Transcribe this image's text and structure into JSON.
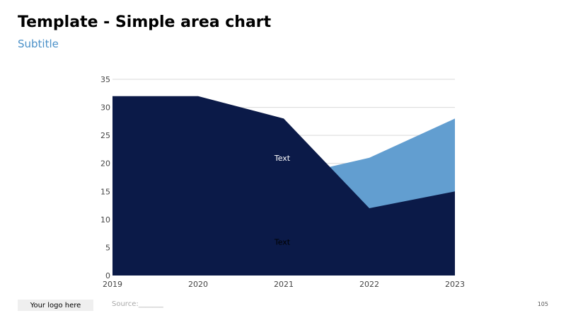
{
  "header": {
    "title": "Template - Simple area chart",
    "subtitle": "Subtitle"
  },
  "chart_data": {
    "type": "area",
    "title": "",
    "xlabel": "",
    "ylabel": "",
    "x": [
      "2019",
      "2020",
      "2021",
      "2022",
      "2023"
    ],
    "yticks": [
      0,
      5,
      10,
      15,
      20,
      25,
      30,
      35
    ],
    "ylim": [
      0,
      35
    ],
    "grid": true,
    "legend": "none",
    "series": [
      {
        "values": [
          32,
          32,
          28,
          12,
          15
        ],
        "color": "#0b1a48",
        "label": "Text",
        "label_color": "#000000"
      },
      {
        "values": [
          17.5,
          17.5,
          17.5,
          21,
          28
        ],
        "color": "#629ed0",
        "label": "Text",
        "label_color": "#ffffff"
      }
    ]
  },
  "footer": {
    "logo_text": "Your logo here",
    "source": "Source:_______",
    "page_number": "105"
  }
}
